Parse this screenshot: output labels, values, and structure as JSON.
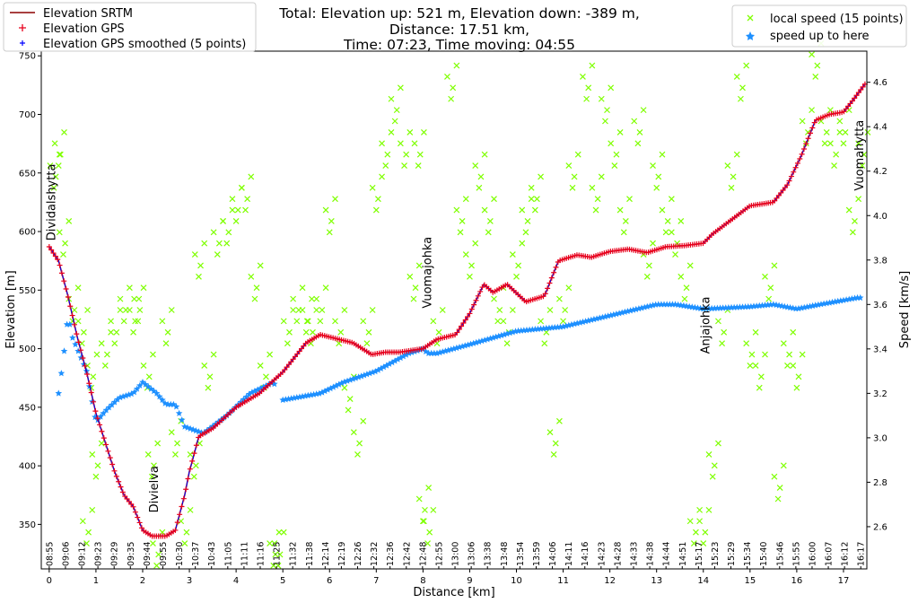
{
  "chart_data": {
    "type": "line",
    "title_lines": [
      "Total: Elevation up: 521 m, Elevation down: -389 m,",
      "Distance: 17.51 km,",
      "Time: 07:23, Time moving: 04:55"
    ],
    "xlabel": "Distance [km]",
    "ylabel_left": "Elevation [m]",
    "ylabel_right": "Speed [km/s]",
    "xlim": [
      -0.17,
      17.5
    ],
    "ylim_left": [
      312,
      754
    ],
    "ylim_right": [
      2.41,
      4.74
    ],
    "x_ticks": [
      "0",
      "1",
      "2",
      "3",
      "4",
      "5",
      "6",
      "7",
      "8",
      "9",
      "10",
      "11",
      "12",
      "13",
      "14",
      "15",
      "16",
      "17"
    ],
    "y_left_ticks": [
      "350",
      "400",
      "450",
      "500",
      "550",
      "600",
      "650",
      "700",
      "750"
    ],
    "y_right_ticks": [
      "2.6",
      "2.8",
      "3.0",
      "3.2",
      "3.4",
      "3.6",
      "3.8",
      "4.0",
      "4.2",
      "4.4",
      "4.6"
    ],
    "time_ticks": [
      "08:55",
      "09:06",
      "09:12",
      "09:23",
      "09:29",
      "09:35",
      "09:44",
      "09:55",
      "10:30",
      "10:37",
      "10:43",
      "11:05",
      "11:11",
      "11:16",
      "11:25",
      "11:32",
      "11:38",
      "12:14",
      "12:19",
      "12:26",
      "12:32",
      "12:36",
      "12:42",
      "12:48",
      "12:55",
      "13:00",
      "13:06",
      "13:38",
      "13:48",
      "13:54",
      "13:59",
      "14:06",
      "14:11",
      "14:16",
      "14:23",
      "14:28",
      "14:33",
      "14:38",
      "14:44",
      "14:51",
      "15:17",
      "15:23",
      "15:29",
      "15:34",
      "15:40",
      "15:46",
      "15:55",
      "16:00",
      "16:07",
      "16:12",
      "16:17"
    ],
    "grid": false,
    "legend_left": {
      "placement": "top-left",
      "entries": [
        "Elevation SRTM",
        "Elevation GPS",
        "Elevation GPS smoothed (5 points)"
      ]
    },
    "legend_right": {
      "placement": "top-right",
      "entries": [
        "local speed (15 points)",
        "speed up to here"
      ]
    },
    "colors": {
      "srtm": "#8b0000",
      "gps": "#e8001c",
      "smoothed": "#0000ff",
      "local_speed": "#7fff00",
      "speed_to_here": "#1e90ff"
    },
    "annotations": [
      {
        "text": "Dividalshytta",
        "x": 0.05,
        "y": 625
      },
      {
        "text": "Divielva",
        "x": 2.25,
        "y": 380
      },
      {
        "text": "Vuomajohka",
        "x": 8.1,
        "y": 565
      },
      {
        "text": "Anjajohka",
        "x": 14.05,
        "y": 520
      },
      {
        "text": "Vuomahytta",
        "x": 17.55,
        "y": 665
      }
    ],
    "series": [
      {
        "name": "Elevation GPS",
        "axis": "left",
        "x": [
          0,
          0.2,
          0.4,
          0.6,
          0.8,
          1.0,
          1.2,
          1.4,
          1.6,
          1.8,
          2.0,
          2.2,
          2.5,
          2.7,
          2.9,
          3.0,
          3.2,
          3.5,
          4.0,
          4.5,
          5.0,
          5.3,
          5.5,
          5.8,
          6.2,
          6.5,
          6.9,
          7.2,
          7.5,
          8.0,
          8.3,
          8.7,
          9.0,
          9.3,
          9.5,
          9.8,
          10.2,
          10.6,
          10.9,
          11.3,
          11.6,
          12.0,
          12.4,
          12.8,
          13.2,
          13.6,
          14.0,
          14.2,
          14.6,
          15.0,
          15.5,
          15.8,
          16.1,
          16.4,
          16.7,
          17.0,
          17.2,
          17.5
        ],
        "y": [
          587,
          575,
          545,
          510,
          480,
          445,
          420,
          395,
          375,
          365,
          345,
          340,
          340,
          345,
          375,
          395,
          425,
          432,
          450,
          462,
          480,
          495,
          505,
          512,
          508,
          505,
          495,
          497,
          497,
          500,
          508,
          512,
          530,
          555,
          548,
          555,
          540,
          545,
          575,
          580,
          578,
          583,
          585,
          582,
          587,
          588,
          590,
          598,
          610,
          622,
          625,
          640,
          665,
          695,
          700,
          702,
          712,
          728
        ]
      },
      {
        "name": "speed up to here",
        "axis": "right",
        "x": [
          0.2,
          0.3,
          0.4,
          0.5,
          0.6,
          0.8,
          1.0,
          1.2,
          1.5,
          1.8,
          2.0,
          2.3,
          2.5,
          2.7,
          2.9,
          3.3,
          3.8,
          4.3,
          4.8,
          5.0,
          5.8,
          6.3,
          7.0,
          7.7,
          8.0,
          8.1,
          8.3,
          9.0,
          10.0,
          11.0,
          12.0,
          13.0,
          13.4,
          14.0,
          15.0,
          15.5,
          16.0,
          16.5,
          17.3
        ],
        "y": [
          3.2,
          3.35,
          3.55,
          3.45,
          3.4,
          3.3,
          3.07,
          3.12,
          3.18,
          3.2,
          3.25,
          3.2,
          3.15,
          3.15,
          3.05,
          3.02,
          3.1,
          3.2,
          3.25,
          3.17,
          3.2,
          3.25,
          3.3,
          3.38,
          3.4,
          3.38,
          3.38,
          3.42,
          3.48,
          3.5,
          3.55,
          3.6,
          3.6,
          3.58,
          3.59,
          3.6,
          3.58,
          3.6,
          3.63
        ]
      },
      {
        "name": "local speed (15 points)",
        "axis": "right",
        "x": [
          0.1,
          0.2,
          0.3,
          0.5,
          0.7,
          0.8,
          0.9,
          1.0,
          1.2,
          1.4,
          1.6,
          1.8,
          1.9,
          2.1,
          2.2,
          2.3,
          2.5,
          2.7,
          2.9,
          3.1,
          3.2,
          3.4,
          3.6,
          3.8,
          4.0,
          4.2,
          4.4,
          4.6,
          4.8,
          4.9,
          5.1,
          5.3,
          5.5,
          5.6,
          5.8,
          6.0,
          6.2,
          6.4,
          6.6,
          6.8,
          7.0,
          7.2,
          7.4,
          7.6,
          7.8,
          7.9,
          8.0,
          8.1,
          8.3,
          8.6,
          8.8,
          9.0,
          9.2,
          9.4,
          9.6,
          9.8,
          10.0,
          10.2,
          10.4,
          10.6,
          10.8,
          11.0,
          11.2,
          11.5,
          11.7,
          11.9,
          12.1,
          12.3,
          12.6,
          12.8,
          13.0,
          13.2,
          13.4,
          13.6,
          13.8,
          14.0,
          14.2,
          14.4,
          14.6,
          14.8,
          15.0,
          15.2,
          15.4,
          15.6,
          15.8,
          16.0,
          16.2,
          16.4,
          16.6,
          16.8,
          17.0,
          17.2,
          17.4
        ],
        "y": [
          4.2,
          4.3,
          3.9,
          3.6,
          3.5,
          2.6,
          3.3,
          2.9,
          3.4,
          3.5,
          3.6,
          3.55,
          3.6,
          3.3,
          2.9,
          2.5,
          3.5,
          3.0,
          2.6,
          2.9,
          3.8,
          3.3,
          3.9,
          3.95,
          4.05,
          4.1,
          3.7,
          3.3,
          2.5,
          2.5,
          3.5,
          3.6,
          3.55,
          3.5,
          3.6,
          4.0,
          3.5,
          3.2,
          3.0,
          3.5,
          4.1,
          4.3,
          4.5,
          4.3,
          3.7,
          4.3,
          2.7,
          2.6,
          3.5,
          4.6,
          4.0,
          3.8,
          4.2,
          4.0,
          3.6,
          3.5,
          3.8,
          4.0,
          4.1,
          3.5,
          3.0,
          3.6,
          4.2,
          4.6,
          4.1,
          4.5,
          4.3,
          4.0,
          4.4,
          3.8,
          4.2,
          4.0,
          3.9,
          3.7,
          2.6,
          2.6,
          2.9,
          3.5,
          4.2,
          4.6,
          3.4,
          3.3,
          3.7,
          2.8,
          3.4,
          3.3,
          4.4,
          4.7,
          4.4,
          4.3,
          4.4,
          4.0,
          4.3
        ]
      }
    ]
  }
}
